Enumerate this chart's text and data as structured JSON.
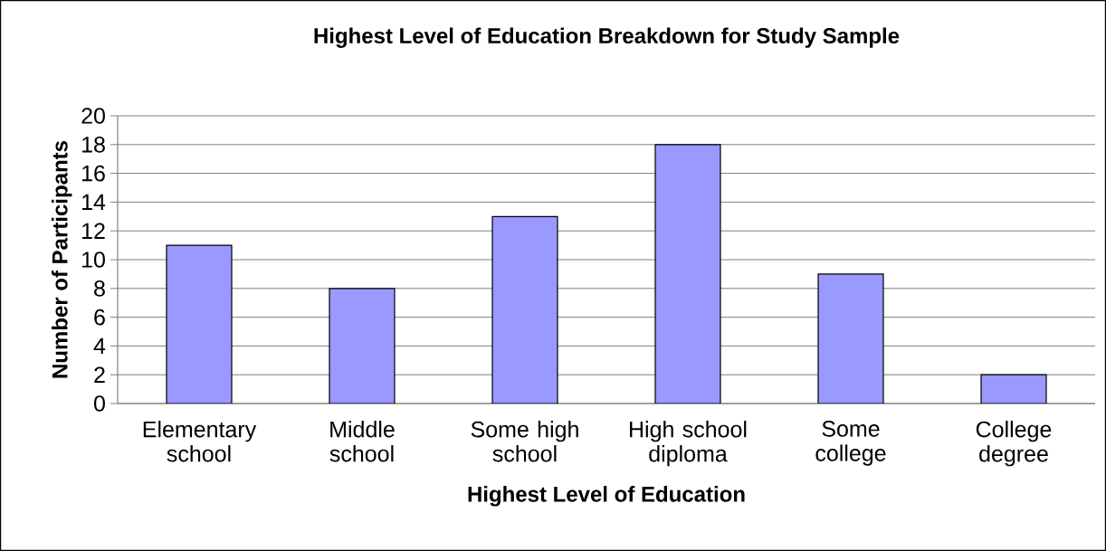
{
  "chart_data": {
    "type": "bar",
    "title": "Highest Level of Education Breakdown for Study Sample",
    "xlabel": "Highest Level of Education",
    "ylabel": "Number of Participants",
    "categories": [
      "Elementary school",
      "Middle school",
      "Some high school",
      "High school diploma",
      "Some college",
      "College degree"
    ],
    "values": [
      11,
      8,
      13,
      18,
      9,
      2
    ],
    "color": "#9999ff",
    "ylim": [
      0,
      20
    ],
    "yticks": [
      0,
      2,
      4,
      6,
      8,
      10,
      12,
      14,
      16,
      18,
      20
    ],
    "grid": "y"
  }
}
